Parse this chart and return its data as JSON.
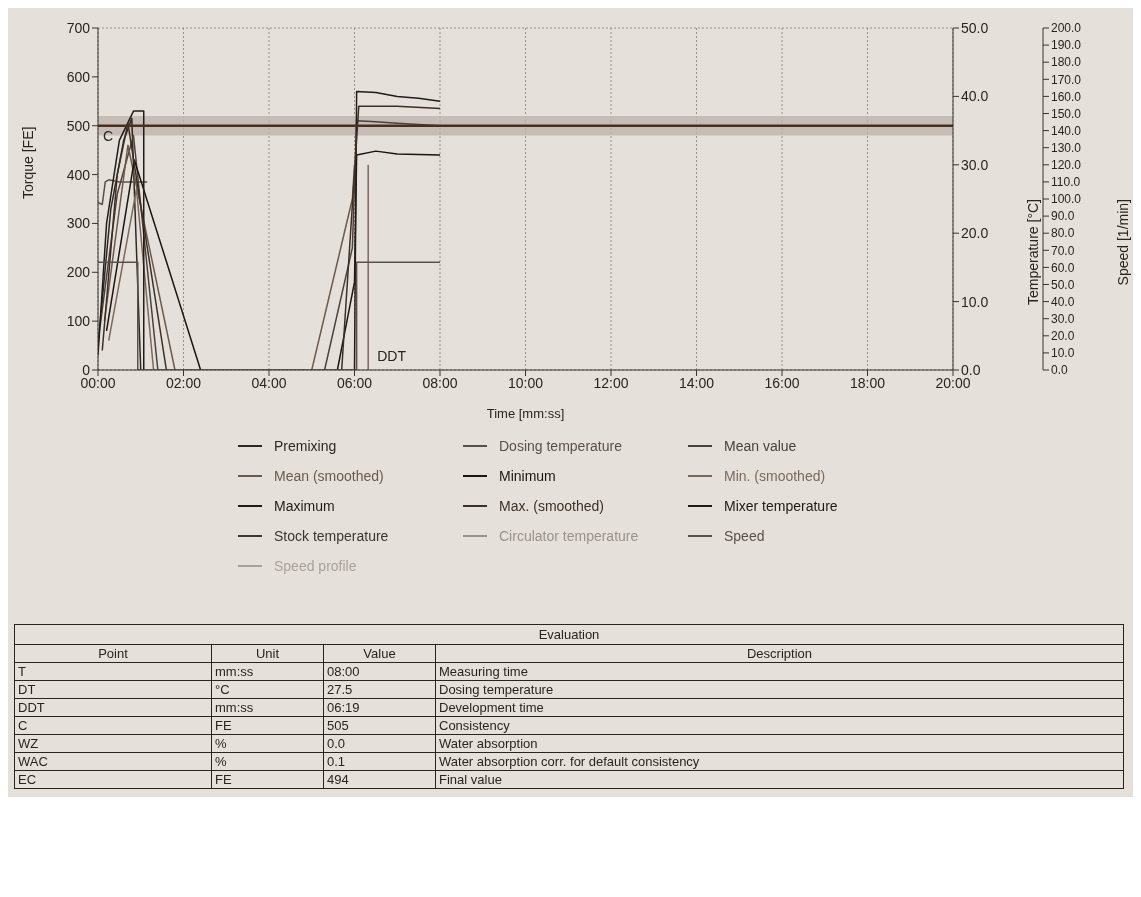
{
  "chart_data": {
    "type": "line",
    "xlabel": "Time [mm:ss]",
    "ylabel": "Torque [FE]",
    "y2label": "Temperature [°C]",
    "y3label": "Speed [1/min]",
    "xlim": [
      0,
      20
    ],
    "xticks": [
      {
        "value": 0,
        "label": "00:00"
      },
      {
        "value": 2,
        "label": "02:00"
      },
      {
        "value": 4,
        "label": "04:00"
      },
      {
        "value": 6,
        "label": "06:00"
      },
      {
        "value": 8,
        "label": "08:00"
      },
      {
        "value": 10,
        "label": "10:00"
      },
      {
        "value": 12,
        "label": "12:00"
      },
      {
        "value": 14,
        "label": "14:00"
      },
      {
        "value": 16,
        "label": "16:00"
      },
      {
        "value": 18,
        "label": "18:00"
      },
      {
        "value": 20,
        "label": "20:00"
      }
    ],
    "ylim": [
      0,
      700
    ],
    "yticks": [
      0,
      100,
      200,
      300,
      400,
      500,
      600,
      700
    ],
    "y2lim": [
      0,
      50
    ],
    "y2ticks": [
      {
        "value": 0,
        "label": "0.0"
      },
      {
        "value": 10,
        "label": "10.0"
      },
      {
        "value": 20,
        "label": "20.0"
      },
      {
        "value": 30,
        "label": "30.0"
      },
      {
        "value": 40,
        "label": "40.0"
      },
      {
        "value": 50,
        "label": "50.0"
      }
    ],
    "y3lim": [
      0,
      200
    ],
    "y3ticks": [
      {
        "value": 0,
        "label": "0.0"
      },
      {
        "value": 10,
        "label": "10.0"
      },
      {
        "value": 20,
        "label": "20.0"
      },
      {
        "value": 30,
        "label": "30.0"
      },
      {
        "value": 40,
        "label": "40.0"
      },
      {
        "value": 50,
        "label": "50.0"
      },
      {
        "value": 60,
        "label": "60.0"
      },
      {
        "value": 70,
        "label": "70.0"
      },
      {
        "value": 80,
        "label": "80.0"
      },
      {
        "value": 90,
        "label": "90.0"
      },
      {
        "value": 100,
        "label": "100.0"
      },
      {
        "value": 110,
        "label": "110.0"
      },
      {
        "value": 120,
        "label": "120.0"
      },
      {
        "value": 130,
        "label": "130.0"
      },
      {
        "value": 140,
        "label": "140.0"
      },
      {
        "value": 150,
        "label": "150.0"
      },
      {
        "value": 160,
        "label": "160.0"
      },
      {
        "value": 170,
        "label": "170.0"
      },
      {
        "value": 180,
        "label": "180.0"
      },
      {
        "value": 190,
        "label": "190.0"
      },
      {
        "value": 200,
        "label": "200.0"
      }
    ],
    "grid": true,
    "legend": "bottom",
    "marker": "none",
    "line_style": "solid",
    "series": [
      {
        "name": "Premixing",
        "color": "#2e2824",
        "x": [
          0,
          0.3,
          0.6,
          0.79,
          1.0
        ],
        "values": [
          50,
          330,
          470,
          515,
          0
        ]
      },
      {
        "name": "Dosing temperature",
        "color": "#5a504a",
        "axis": "y2",
        "x": [
          0,
          0.1,
          0.17,
          0.25,
          0.5,
          1.15
        ],
        "values": [
          24.5,
          24.2,
          27.5,
          27.8,
          27.5,
          27.5
        ]
      },
      {
        "name": "Mean value",
        "color": "#4a423c",
        "x": [
          0.05,
          0.45,
          0.83,
          1.4,
          3,
          5.3,
          5.95,
          6.05,
          6.5,
          7,
          8
        ],
        "values": [
          90,
          360,
          480,
          0,
          null,
          0,
          250,
          510,
          508,
          505,
          500
        ]
      },
      {
        "name": "Mean (smoothed)",
        "color": "#6a5a4c",
        "x": [
          0.15,
          0.7,
          1.8,
          3,
          5.0,
          5.95,
          6.0
        ],
        "values": [
          100,
          460,
          0,
          null,
          0,
          350,
          420
        ]
      },
      {
        "name": "Minimum",
        "color": "#1a1612",
        "x": [
          0.2,
          0.85,
          2.4,
          4,
          5.6,
          6.0,
          6.05,
          6.5,
          7,
          7.5,
          8
        ],
        "values": [
          80,
          430,
          0,
          null,
          0,
          180,
          440,
          448,
          442,
          441,
          440
        ]
      },
      {
        "name": "Min. (smoothed)",
        "color": "#7a6a5e",
        "x": [
          0.25,
          0.9,
          1.3,
          3,
          6.32,
          6.32
        ],
        "values": [
          60,
          370,
          0,
          null,
          0,
          420
        ]
      },
      {
        "name": "Maximum",
        "color": "#221c18",
        "x": [
          0,
          0.2,
          0.5,
          0.83,
          1.07,
          1.07,
          3,
          6.0,
          6.05,
          6.5,
          7,
          7.5,
          8
        ],
        "values": [
          30,
          300,
          470,
          530,
          530,
          0,
          null,
          0,
          570,
          568,
          560,
          556,
          550
        ]
      },
      {
        "name": "Max. (smoothed)",
        "color": "#3c3026",
        "x": [
          0.1,
          0.45,
          0.7,
          1.6,
          3,
          5.7,
          6.1,
          7,
          8
        ],
        "values": [
          40,
          400,
          505,
          0,
          null,
          0,
          540,
          540,
          535
        ]
      },
      {
        "name": "Mixer temperature",
        "color": "#201a16",
        "axis": "y2"
      },
      {
        "name": "Stock temperature",
        "color": "#3d3530",
        "axis": "y2"
      },
      {
        "name": "Circulator temperature",
        "color": "#9a928a",
        "axis": "y2"
      },
      {
        "name": "Speed",
        "color": "#5a504a",
        "axis": "y3",
        "x": [
          0,
          0.93,
          0.93,
          6.05,
          6.05,
          8
        ],
        "values": [
          63,
          63,
          0,
          0,
          63,
          63
        ]
      },
      {
        "name": "Speed profile",
        "color": "#aaa29a",
        "axis": "y3"
      }
    ],
    "ref_lines": [
      {
        "axis": "y",
        "value": 500,
        "label": "C",
        "color": "#4a2e1e"
      }
    ],
    "bands": [
      {
        "axis": "y",
        "from": 480,
        "to": 520,
        "color": "#bdb4ac"
      }
    ],
    "annotations": [
      {
        "text": "DDT",
        "x": 6.32,
        "y": 0
      },
      "Evaluation",
      "Point",
      "Unit",
      "Value",
      "Description",
      "T",
      "mm:ss",
      "08:00",
      "Measuring time",
      "DT",
      "°C",
      "27.5",
      "Dosing temperature",
      "DDT",
      "mm:ss",
      "06:19",
      "Development time",
      "C",
      "FE",
      "505",
      "Consistency",
      "WZ",
      "%",
      "0.0",
      "Water absorption",
      "WAC",
      "%",
      "0.1",
      "Water absorption corr. for default consistency",
      "EC",
      "FE",
      "494",
      "Final value"
    ]
  }
}
